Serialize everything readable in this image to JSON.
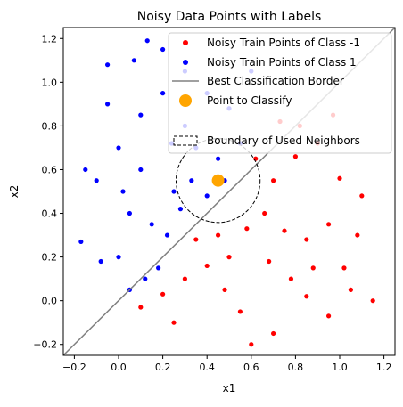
{
  "chart_data": {
    "type": "scatter",
    "title": "Noisy Data Points with Labels",
    "xlabel": "x1",
    "ylabel": "x2",
    "xlim": [
      -0.25,
      1.25
    ],
    "ylim": [
      -0.25,
      1.25
    ],
    "x_ticks": [
      "−0.2",
      "0.0",
      "0.2",
      "0.4",
      "0.6",
      "0.8",
      "1.0",
      "1.2"
    ],
    "y_ticks": [
      "−0.2",
      "0.0",
      "0.2",
      "0.4",
      "0.6",
      "0.8",
      "1.0",
      "1.2"
    ],
    "x_tick_values": [
      -0.2,
      0.0,
      0.2,
      0.4,
      0.6,
      0.8,
      1.0,
      1.2
    ],
    "y_tick_values": [
      -0.2,
      0.0,
      0.2,
      0.4,
      0.6,
      0.8,
      1.0,
      1.2
    ],
    "grid": false,
    "legend_position": "top-right",
    "series": [
      {
        "name": "Noisy Train Points of Class -1",
        "color": "#ff0000",
        "marker": "dot",
        "approx_count": 350,
        "points": [
          [
            0.62,
            0.65
          ],
          [
            0.7,
            0.55
          ],
          [
            0.8,
            0.66
          ],
          [
            0.9,
            0.72
          ],
          [
            1.0,
            0.56
          ],
          [
            0.66,
            0.4
          ],
          [
            0.75,
            0.32
          ],
          [
            0.85,
            0.28
          ],
          [
            0.95,
            0.35
          ],
          [
            1.02,
            0.15
          ],
          [
            0.5,
            0.2
          ],
          [
            0.4,
            0.16
          ],
          [
            0.3,
            0.1
          ],
          [
            0.2,
            0.03
          ],
          [
            0.1,
            -0.03
          ],
          [
            0.25,
            -0.1
          ],
          [
            0.55,
            -0.05
          ],
          [
            0.6,
            -0.2
          ],
          [
            0.7,
            -0.15
          ],
          [
            0.85,
            0.02
          ],
          [
            0.95,
            -0.07
          ],
          [
            1.05,
            0.05
          ],
          [
            1.15,
            0.0
          ],
          [
            1.08,
            0.3
          ],
          [
            1.1,
            0.48
          ],
          [
            0.97,
            0.85
          ],
          [
            0.82,
            0.8
          ],
          [
            0.73,
            0.82
          ],
          [
            0.45,
            0.3
          ],
          [
            0.35,
            0.28
          ],
          [
            0.58,
            0.33
          ],
          [
            0.68,
            0.18
          ],
          [
            0.78,
            0.1
          ],
          [
            0.88,
            0.15
          ],
          [
            0.48,
            0.05
          ]
        ]
      },
      {
        "name": "Noisy Train Points of Class 1",
        "color": "#0000ff",
        "marker": "dot",
        "approx_count": 350,
        "points": [
          [
            0.0,
            0.7
          ],
          [
            -0.05,
            0.9
          ],
          [
            0.1,
            0.6
          ],
          [
            0.2,
            0.95
          ],
          [
            0.3,
            0.8
          ],
          [
            0.05,
            0.4
          ],
          [
            -0.1,
            0.55
          ],
          [
            0.15,
            0.35
          ],
          [
            0.25,
            0.5
          ],
          [
            0.35,
            0.7
          ],
          [
            0.4,
            0.95
          ],
          [
            0.5,
            0.88
          ],
          [
            0.3,
            1.05
          ],
          [
            0.13,
            1.19
          ],
          [
            -0.05,
            1.08
          ],
          [
            0.0,
            0.2
          ],
          [
            -0.08,
            0.18
          ],
          [
            0.05,
            0.05
          ],
          [
            0.18,
            0.15
          ],
          [
            0.22,
            0.3
          ],
          [
            0.45,
            0.65
          ],
          [
            0.55,
            0.72
          ],
          [
            0.6,
            1.05
          ],
          [
            0.2,
            1.15
          ],
          [
            0.1,
            0.85
          ],
          [
            -0.15,
            0.6
          ],
          [
            -0.17,
            0.27
          ],
          [
            0.07,
            1.1
          ],
          [
            0.33,
            0.55
          ],
          [
            0.4,
            0.48
          ],
          [
            0.48,
            0.55
          ],
          [
            0.12,
            0.1
          ],
          [
            0.24,
            0.72
          ],
          [
            0.02,
            0.5
          ],
          [
            0.28,
            0.42
          ]
        ]
      }
    ],
    "border": {
      "name": "Best Classification Border",
      "color": "#808080",
      "from": [
        -0.25,
        -0.25
      ],
      "to": [
        1.25,
        1.25
      ]
    },
    "query_point": {
      "name": "Point to Classify",
      "color": "#ffa500",
      "x": 0.45,
      "y": 0.55
    },
    "neighborhood": {
      "name": "Boundary of Used Neighbors",
      "color": "#000000",
      "center_x": 0.45,
      "center_y": 0.55,
      "radius": 0.19
    }
  }
}
